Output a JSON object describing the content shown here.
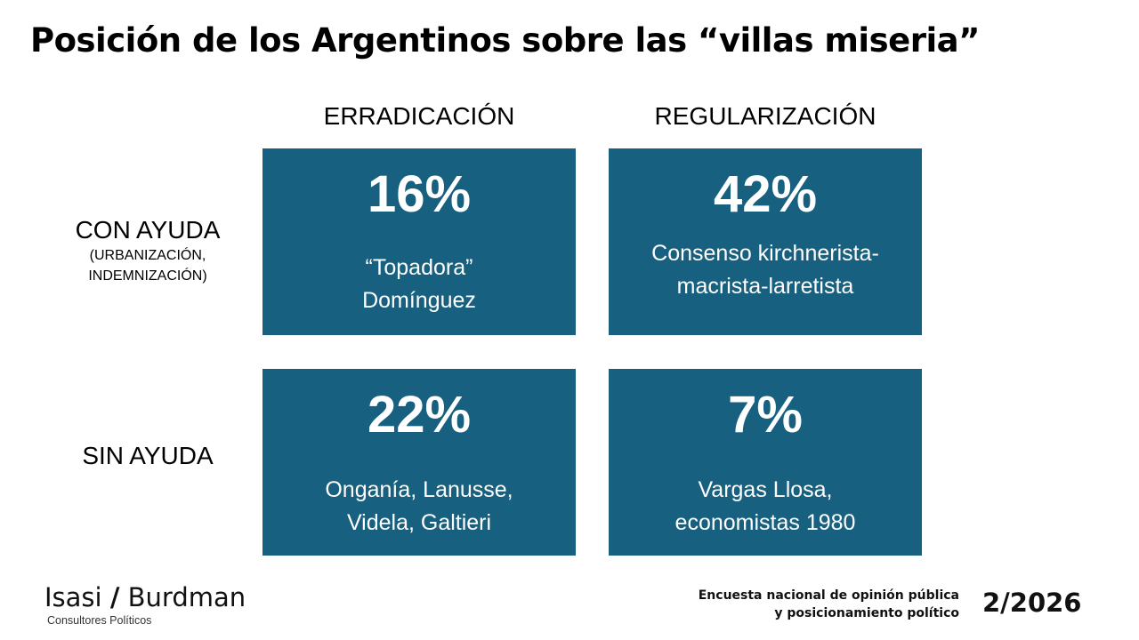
{
  "title": "Posición de los Argentinos sobre las “villas miseria”",
  "colors": {
    "card_background": "#18607f",
    "card_text": "#ffffff",
    "text": "#000000"
  },
  "columns": [
    {
      "label": "ERRADICACIÓN"
    },
    {
      "label": "REGULARIZACIÓN"
    }
  ],
  "rows": [
    {
      "label": "CON AYUDA",
      "sublabel_line1": "(URBANIZACIÓN,",
      "sublabel_line2": "INDEMNIZACIÓN)"
    },
    {
      "label": "SIN AYUDA"
    }
  ],
  "cells": [
    {
      "row": "CON AYUDA",
      "column": "ERRADICACIÓN",
      "value": "16%",
      "desc_line1": "“Topadora”",
      "desc_line2": "Domínguez"
    },
    {
      "row": "CON AYUDA",
      "column": "REGULARIZACIÓN",
      "value": "42%",
      "desc_line1": "Consenso kirchnerista-",
      "desc_line2": "macrista-larretista"
    },
    {
      "row": "SIN AYUDA",
      "column": "ERRADICACIÓN",
      "value": "22%",
      "desc_line1": "Onganía, Lanusse,",
      "desc_line2": "Videla, Galtieri"
    },
    {
      "row": "SIN AYUDA",
      "column": "REGULARIZACIÓN",
      "value": "7%",
      "desc_line1": "Vargas Llosa,",
      "desc_line2": "economistas 1980"
    }
  ],
  "footer": {
    "logo_name_left": "Isasi",
    "logo_slash": "/",
    "logo_name_right": "Burdman",
    "logo_tagline": "Consultores Políticos",
    "survey_line1": "Encuesta nacional de opinión pública",
    "survey_line2": "y posicionamiento político",
    "edition": "2/2026"
  }
}
